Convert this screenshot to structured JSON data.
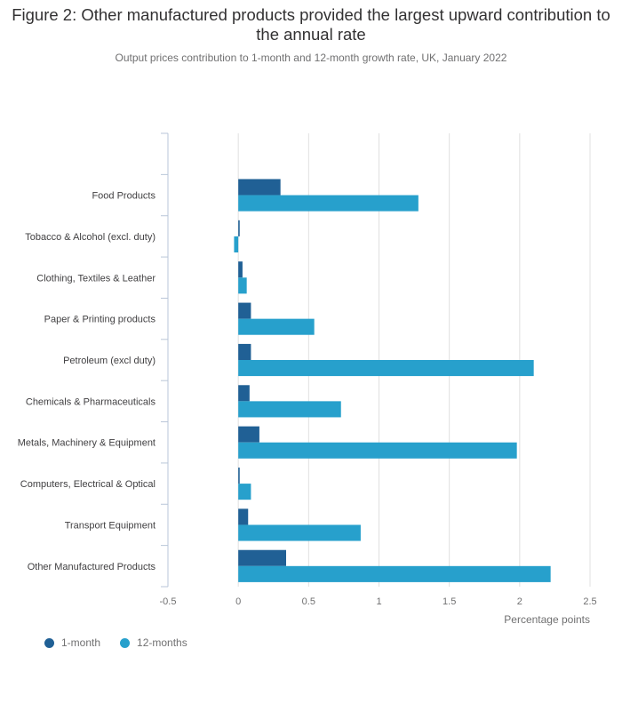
{
  "title": "Figure 2: Other manufactured products provided the largest upward contribution to the annual rate",
  "subtitle": "Output prices contribution to 1-month and 12-month growth rate, UK, January 2022",
  "colors": {
    "one_month": "#206095",
    "twelve_months": "#27a0cc",
    "grid": "#e0e0e0",
    "axis": "#b9c6d8",
    "label": "#414042"
  },
  "chart_data": {
    "type": "bar",
    "orientation": "horizontal",
    "categories": [
      "",
      "Food Products",
      "Tobacco & Alcohol (excl. duty)",
      "Clothing, Textiles & Leather",
      "Paper & Printing products",
      "Petroleum (excl duty)",
      "Chemicals & Pharmaceuticals",
      "Metals, Machinery & Equipment",
      "Computers, Electrical & Optical",
      "Transport Equipment",
      "Other Manufactured Products"
    ],
    "series": [
      {
        "name": "1-month",
        "values": [
          null,
          0.3,
          0.01,
          0.03,
          0.09,
          0.09,
          0.08,
          0.15,
          0.01,
          0.07,
          0.34
        ]
      },
      {
        "name": "12-months",
        "values": [
          null,
          1.28,
          -0.03,
          0.06,
          0.54,
          2.1,
          0.73,
          1.98,
          0.09,
          0.87,
          2.22
        ]
      }
    ],
    "xlabel": "Percentage points",
    "xlim": [
      -0.5,
      2.5
    ],
    "xticks": [
      -0.5,
      0,
      0.5,
      1,
      1.5,
      2,
      2.5
    ],
    "xtick_labels": [
      "-0.5",
      "0",
      "0.5",
      "1",
      "1.5",
      "2",
      "2.5"
    ],
    "grid": true,
    "legend_position": "bottom-left"
  }
}
